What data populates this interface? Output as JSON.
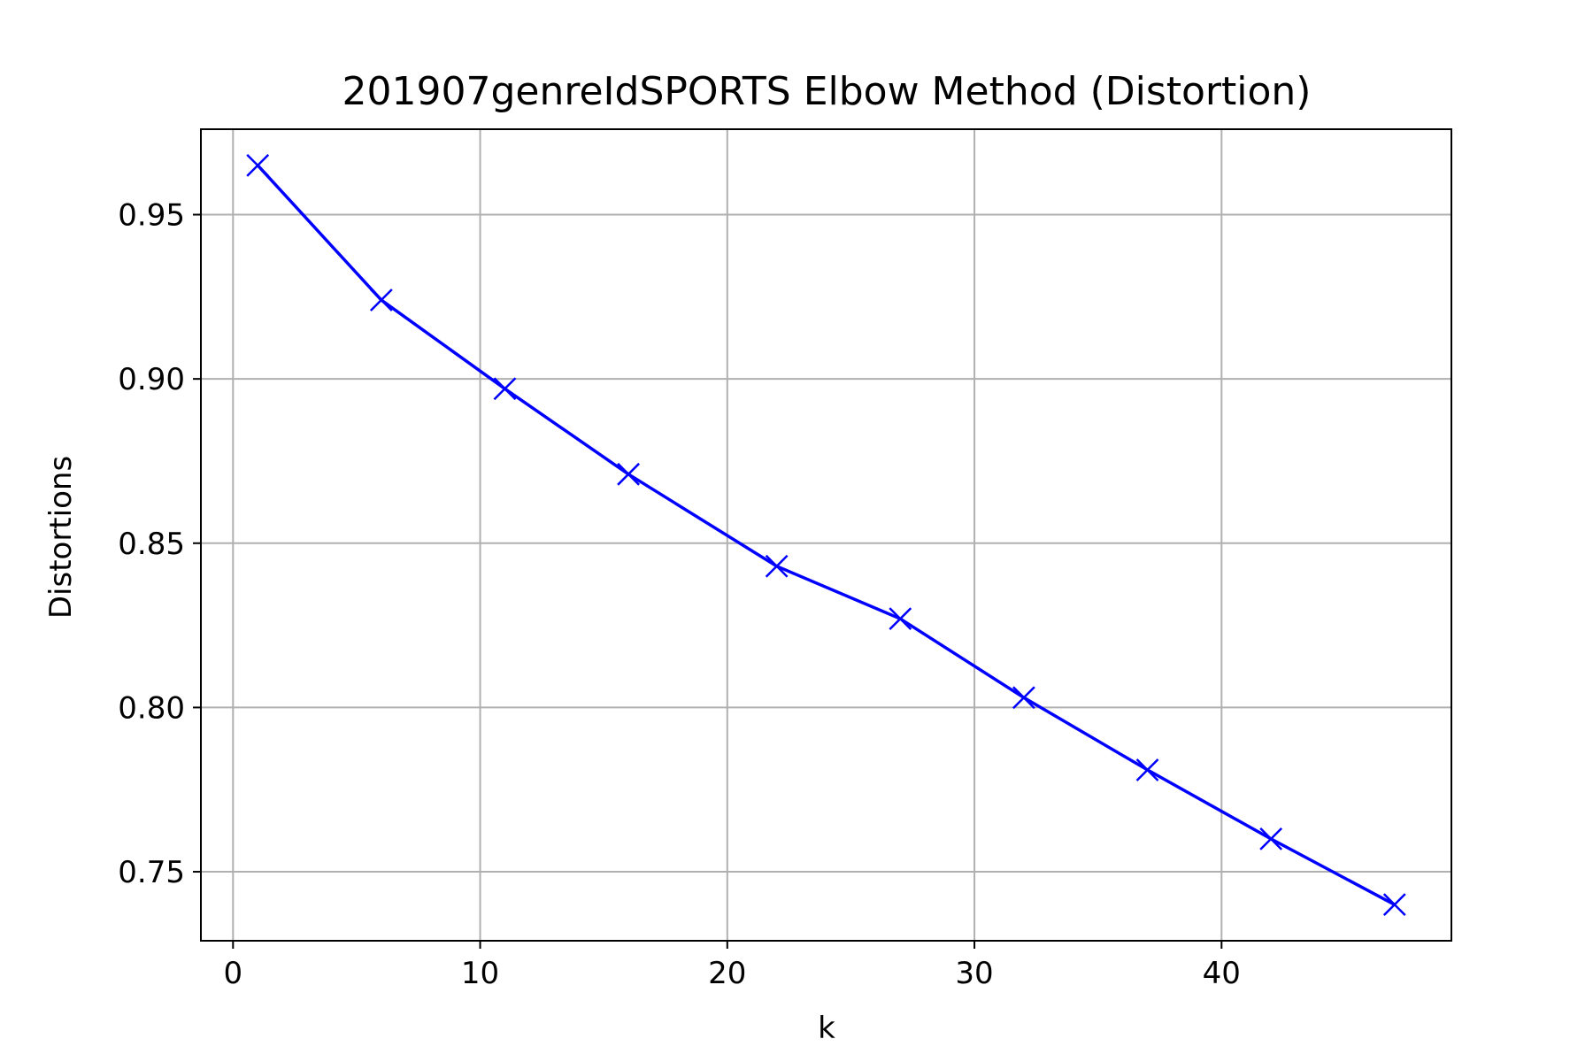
{
  "chart_data": {
    "type": "line",
    "title": "201907genreIdSPORTS Elbow Method (Distortion)",
    "xlabel": "k",
    "ylabel": "Distortions",
    "xlim": [
      -1.3,
      49.3
    ],
    "ylim": [
      0.729,
      0.976
    ],
    "xticks": [
      0,
      10,
      20,
      30,
      40
    ],
    "xtick_labels": [
      "0",
      "10",
      "20",
      "30",
      "40"
    ],
    "yticks": [
      0.75,
      0.8,
      0.85,
      0.9,
      0.95
    ],
    "ytick_labels": [
      "0.75",
      "0.80",
      "0.85",
      "0.90",
      "0.95"
    ],
    "grid": true,
    "marker": "x",
    "series": [
      {
        "color": "#0000ff",
        "x": [
          1,
          6,
          11,
          16,
          22,
          27,
          32,
          37,
          42,
          47
        ],
        "values": [
          0.965,
          0.924,
          0.897,
          0.871,
          0.843,
          0.827,
          0.803,
          0.781,
          0.76,
          0.74
        ]
      }
    ]
  }
}
